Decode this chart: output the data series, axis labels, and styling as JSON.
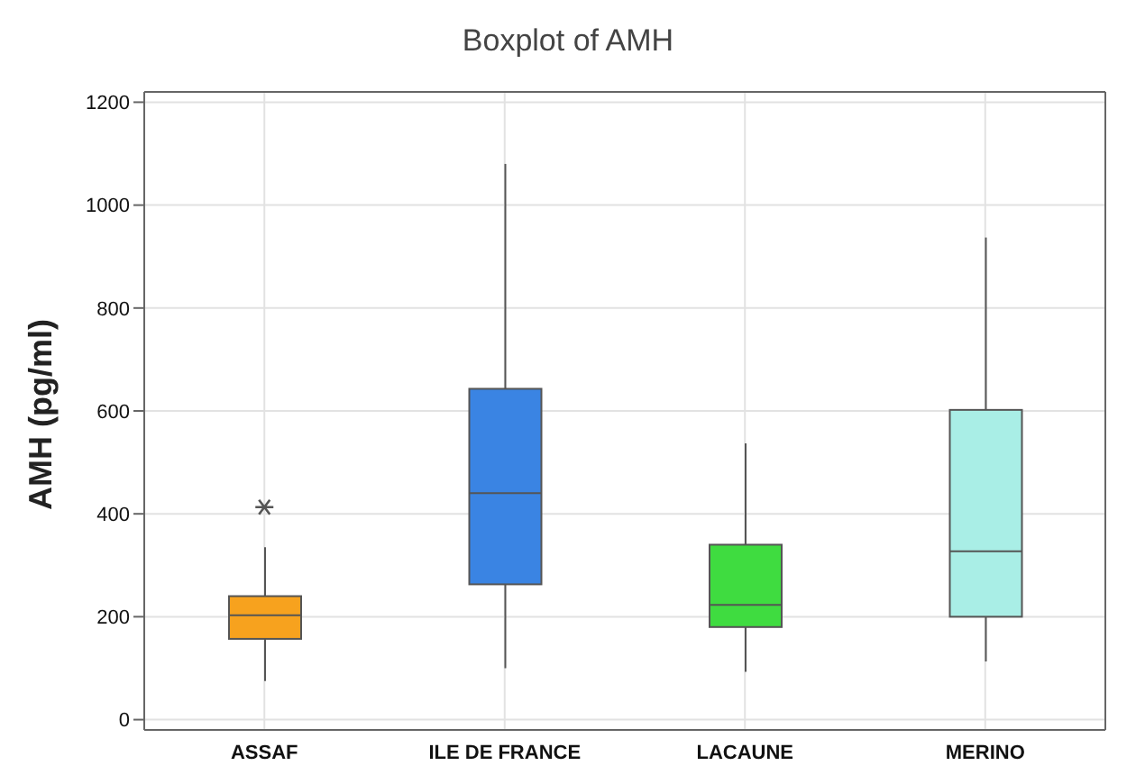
{
  "chart_data": {
    "type": "box",
    "title": "Boxplot of AMH",
    "ylabel": "AMH (pg/ml)",
    "categories": [
      "ASSAF",
      "ILE DE FRANCE",
      "LACAUNE",
      "MERINO"
    ],
    "colors": [
      "#f7a21e",
      "#3a84e3",
      "#3fdc40",
      "#a9eee6"
    ],
    "boxes": [
      {
        "low": 75,
        "q1": 157,
        "median": 203,
        "q3": 240,
        "high": 335,
        "outliers": [
          413
        ]
      },
      {
        "low": 100,
        "q1": 263,
        "median": 440,
        "q3": 643,
        "high": 1080
      },
      {
        "low": 93,
        "q1": 180,
        "median": 223,
        "q3": 340,
        "high": 537
      },
      {
        "low": 113,
        "q1": 200,
        "median": 327,
        "q3": 602,
        "high": 937
      }
    ],
    "marker": "star",
    "ylim": [
      -20,
      1220
    ],
    "yticks": [
      0,
      200,
      400,
      600,
      800,
      1000,
      1200
    ],
    "grid": true
  }
}
